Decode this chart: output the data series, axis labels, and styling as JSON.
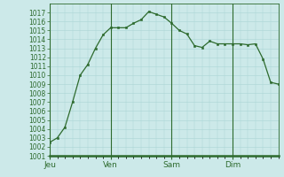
{
  "background_color": "#cce9e9",
  "line_color": "#2d6a2d",
  "marker_color": "#2d6a2d",
  "grid_color": "#aad4d4",
  "axis_label_color": "#2d6a2d",
  "spine_color": "#2d6a2d",
  "ylim": [
    1001,
    1018
  ],
  "ytick_min": 1001,
  "ytick_max": 1017,
  "xtick_labels": [
    "Jeu",
    "Ven",
    "Sam",
    "Dim"
  ],
  "xtick_positions": [
    0,
    8,
    16,
    24
  ],
  "y_values": [
    1002.5,
    1003.0,
    1004.2,
    1007.0,
    1010.0,
    1011.2,
    1013.0,
    1014.5,
    1015.3,
    1015.3,
    1015.3,
    1015.8,
    1016.2,
    1017.1,
    1016.8,
    1016.5,
    1015.8,
    1015.0,
    1014.6,
    1013.3,
    1013.1,
    1013.8,
    1013.5,
    1013.5,
    1013.5,
    1013.5,
    1013.4,
    1013.5,
    1011.8,
    1009.2,
    1009.0
  ],
  "ylabel_fontsize": 5.5,
  "xlabel_fontsize": 6.5
}
